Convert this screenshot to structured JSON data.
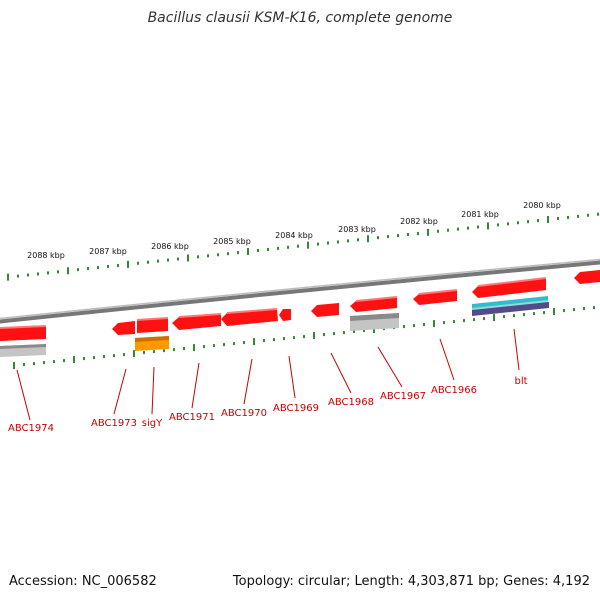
{
  "title": "Bacillus clausii KSM-K16, complete genome",
  "footer": {
    "accession": "Accession: NC_006582",
    "summary": "Topology: circular; Length: 4,303,871 bp; Genes: 4,192"
  },
  "colors": {
    "gene": "#ff0000",
    "gene_label": "#cc0000",
    "tick": "#2e8b2e",
    "backbone": "#888888",
    "orange_feature": "#ff9900",
    "gray_feature": "#bbbbbb",
    "cyan_feature": "#33bbcc",
    "purple_feature": "#554a88"
  },
  "chart_data": {
    "type": "genome-map",
    "topology": "circular",
    "scale_labels": [
      "2088 kbp",
      "2087 kbp",
      "2086 kbp",
      "2085 kbp",
      "2084 kbp",
      "2083 kbp",
      "2082 kbp",
      "2081 kbp",
      "2080 kbp"
    ],
    "genes": [
      "ABC1974",
      "ABC1973",
      "sigY",
      "ABC1971",
      "ABC1970",
      "ABC1969",
      "ABC1968",
      "ABC1967",
      "ABC1966",
      "blt"
    ]
  }
}
